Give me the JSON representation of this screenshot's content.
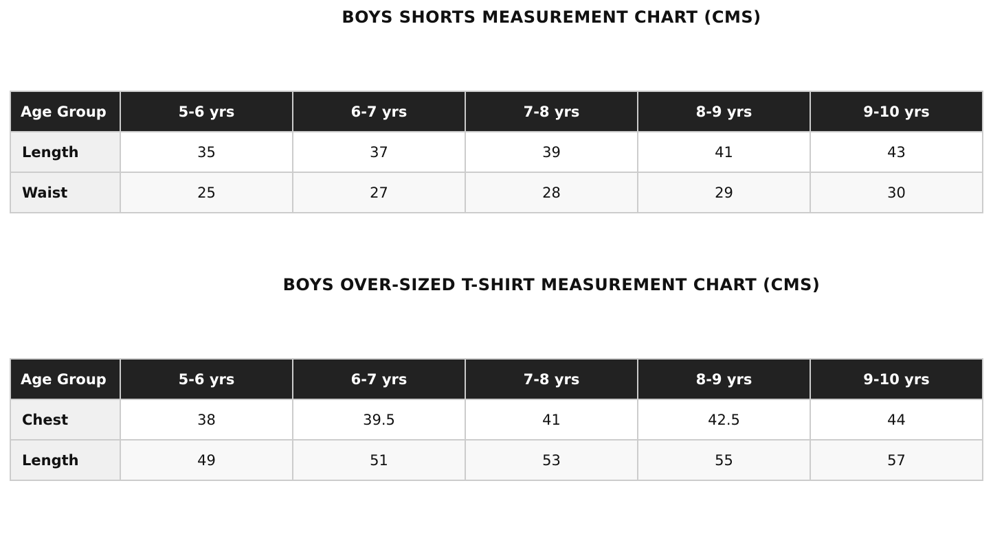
{
  "tables": [
    {
      "title": "BOYS SHORTS MEASUREMENT CHART (CMS)",
      "header": [
        "Age Group",
        "5-6 yrs",
        "6-7 yrs",
        "7-8 yrs",
        "8-9 yrs",
        "9-10 yrs"
      ],
      "rows": [
        [
          "Length",
          35,
          37,
          39,
          41,
          43
        ],
        [
          "Waist",
          25,
          27,
          28,
          29,
          30
        ]
      ]
    },
    {
      "title": "BOYS OVER-SIZED T-SHIRT MEASUREMENT CHART (CMS)",
      "header": [
        "Age Group",
        "5-6 yrs",
        "6-7 yrs",
        "7-8 yrs",
        "8-9 yrs",
        "9-10 yrs"
      ],
      "rows": [
        [
          "Chest",
          38,
          39.5,
          41,
          42.5,
          44
        ],
        [
          "Length",
          49,
          51,
          53,
          55,
          57
        ]
      ]
    }
  ]
}
